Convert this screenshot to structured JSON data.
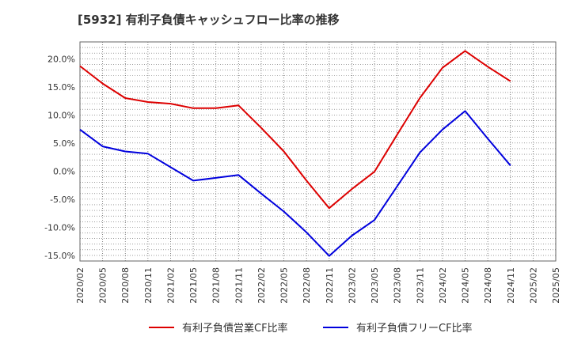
{
  "title": "[5932]  有利子負債キャッシュフロー比率の推移",
  "chart_data": {
    "type": "line",
    "x": [
      "2020/02",
      "2020/05",
      "2020/08",
      "2020/11",
      "2021/02",
      "2021/05",
      "2021/08",
      "2021/11",
      "2022/02",
      "2022/05",
      "2022/08",
      "2022/11",
      "2023/02",
      "2023/05",
      "2023/08",
      "2023/11",
      "2024/02",
      "2024/05",
      "2024/08",
      "2024/11",
      "2025/02",
      "2025/05"
    ],
    "ylim": [
      -16,
      23
    ],
    "yticks": [
      -15,
      -10,
      -5,
      0,
      5,
      10,
      15,
      20
    ],
    "ytick_labels": [
      "-15.0%",
      "-10.0%",
      "-5.0%",
      "0.0%",
      "5.0%",
      "10.0%",
      "15.0%",
      "20.0%"
    ],
    "grid": true,
    "legend_position": "bottom",
    "series": [
      {
        "name": "有利子負債営業CF比率",
        "color": "#dd0000",
        "values": [
          18.7,
          15.6,
          13.0,
          12.3,
          12.0,
          11.2,
          11.2,
          11.7,
          7.7,
          3.5,
          -1.7,
          -6.6,
          -3.2,
          -0.1,
          6.5,
          13.0,
          18.4,
          21.4,
          18.6,
          16.0,
          null,
          null
        ]
      },
      {
        "name": "有利子負債フリーCF比率",
        "color": "#0000dd",
        "values": [
          7.4,
          4.4,
          3.5,
          3.1,
          0.7,
          -1.7,
          -1.2,
          -0.7,
          -4.0,
          -7.2,
          -10.9,
          -15.1,
          -11.5,
          -8.7,
          -2.7,
          3.3,
          7.4,
          10.7,
          5.8,
          1.0,
          null,
          null
        ]
      }
    ]
  }
}
